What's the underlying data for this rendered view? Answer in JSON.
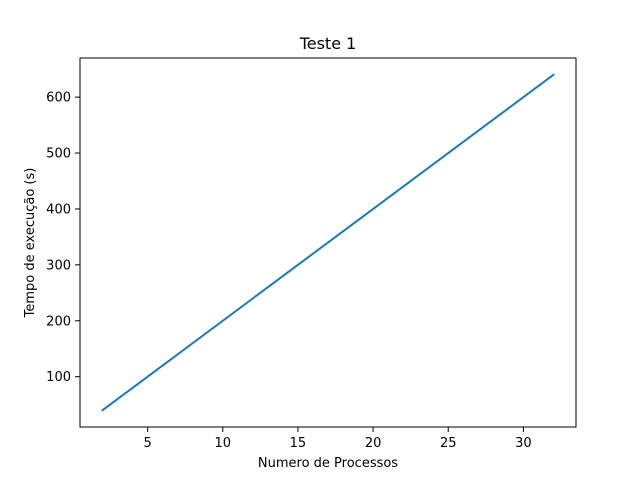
{
  "chart_data": {
    "type": "line",
    "title": "Teste 1",
    "xlabel": "Numero de Processos",
    "ylabel": "Tempo de execução (s)",
    "xlim": [
      0.5,
      33.5
    ],
    "ylim": [
      10,
      670
    ],
    "xticks": [
      5,
      10,
      15,
      20,
      25,
      30
    ],
    "yticks": [
      100,
      200,
      300,
      400,
      500,
      600
    ],
    "grid": false,
    "legend": "none",
    "series": [
      {
        "color": "#1f77b4",
        "x": [
          2,
          32
        ],
        "y": [
          40,
          640
        ]
      }
    ]
  }
}
